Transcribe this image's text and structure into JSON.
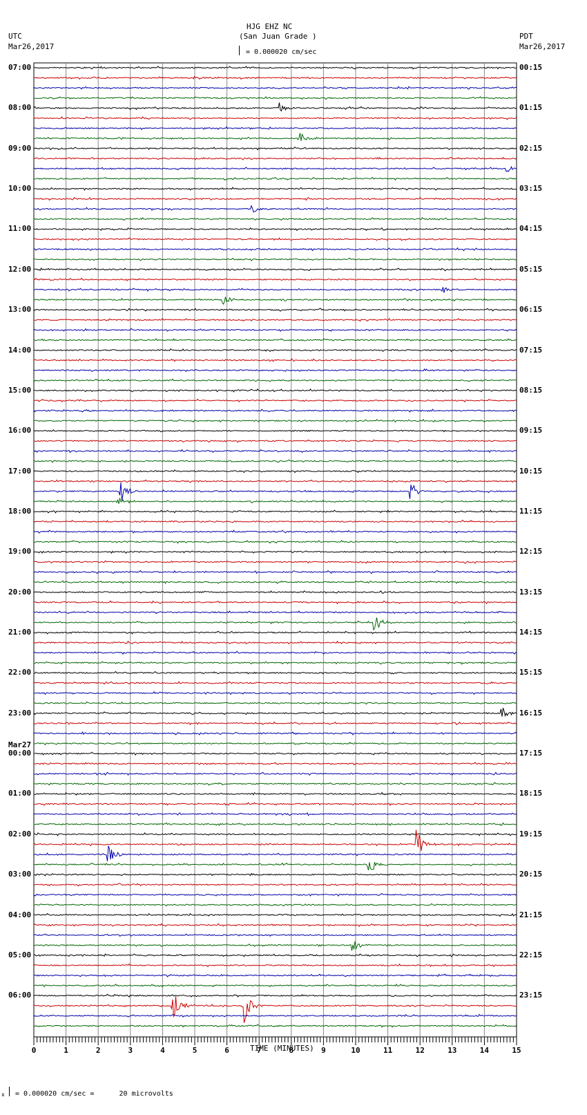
{
  "header": {
    "station": "HJG EHZ NC",
    "site": "(San Juan Grade )",
    "scale": "= 0.000020 cm/sec",
    "left_tz": "UTC",
    "left_date": "Mar26,2017",
    "right_tz": "PDT",
    "right_date": "Mar26,2017"
  },
  "footer": {
    "scale_note": "= 0.000020 cm/sec =      20 microvolts",
    "scale_prefix": "x"
  },
  "chart_data": {
    "type": "line",
    "title": "HJG EHZ NC (San Juan Grade ) helicorder",
    "xlabel": "TIME (MINUTES)",
    "ylabel": "",
    "xlim": [
      0,
      15
    ],
    "x_ticks": [
      "0",
      "1",
      "2",
      "3",
      "4",
      "5",
      "6",
      "7",
      "8",
      "9",
      "10",
      "11",
      "12",
      "13",
      "14",
      "15"
    ],
    "traces_per_hour": 4,
    "trace_minutes": 15,
    "trace_colors": [
      "#000000",
      "#cc0000",
      "#0000aa",
      "#006600"
    ],
    "left_labels": [
      "07:00",
      "08:00",
      "09:00",
      "10:00",
      "11:00",
      "12:00",
      "13:00",
      "14:00",
      "15:00",
      "16:00",
      "17:00",
      "18:00",
      "19:00",
      "20:00",
      "21:00",
      "22:00",
      "23:00",
      "Mar27\n00:00",
      "01:00",
      "02:00",
      "03:00",
      "04:00",
      "05:00",
      "06:00"
    ],
    "right_labels": [
      "00:15",
      "01:15",
      "02:15",
      "03:15",
      "04:15",
      "05:15",
      "06:15",
      "07:15",
      "08:15",
      "09:15",
      "10:15",
      "11:15",
      "12:15",
      "13:15",
      "14:15",
      "15:15",
      "16:15",
      "17:15",
      "18:15",
      "19:15",
      "20:15",
      "21:15",
      "22:15",
      "23:15"
    ],
    "events": [
      {
        "trace": 4,
        "minute": 7.6,
        "amp": 14
      },
      {
        "trace": 7,
        "minute": 8.3,
        "amp": 8
      },
      {
        "trace": 10,
        "minute": 14.7,
        "amp": 6
      },
      {
        "trace": 14,
        "minute": 6.8,
        "amp": 6
      },
      {
        "trace": 22,
        "minute": 12.7,
        "amp": 5
      },
      {
        "trace": 23,
        "minute": 5.9,
        "amp": 7
      },
      {
        "trace": 42,
        "minute": 2.7,
        "amp": 16
      },
      {
        "trace": 42,
        "minute": 11.7,
        "amp": 16
      },
      {
        "trace": 43,
        "minute": 2.6,
        "amp": 8
      },
      {
        "trace": 55,
        "minute": 10.6,
        "amp": 14
      },
      {
        "trace": 64,
        "minute": 14.5,
        "amp": 12
      },
      {
        "trace": 77,
        "minute": 11.9,
        "amp": 22
      },
      {
        "trace": 78,
        "minute": 2.3,
        "amp": 16
      },
      {
        "trace": 79,
        "minute": 10.4,
        "amp": 18
      },
      {
        "trace": 87,
        "minute": 9.9,
        "amp": 12
      },
      {
        "trace": 93,
        "minute": 4.3,
        "amp": 28
      },
      {
        "trace": 93,
        "minute": 6.5,
        "amp": 30
      }
    ]
  }
}
